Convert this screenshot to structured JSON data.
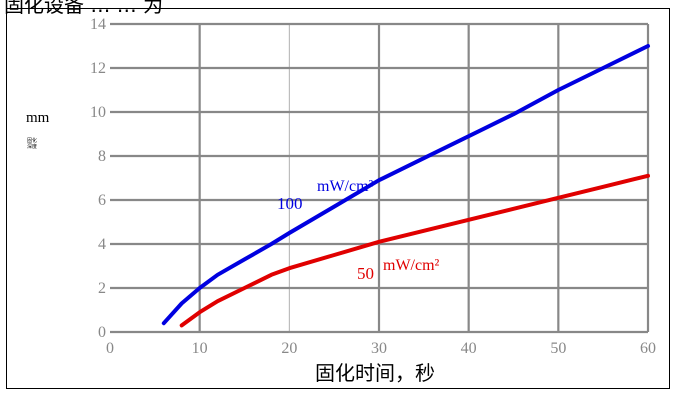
{
  "page": {
    "title_fragment": "固化设备 … … 为"
  },
  "chart_data": {
    "type": "line",
    "xlabel": "固化时间，秒",
    "ylabel": "mm",
    "ylabel_sub": "固化深度",
    "xlim": [
      0,
      60
    ],
    "ylim": [
      0,
      14
    ],
    "xticks": [
      0,
      10,
      20,
      30,
      40,
      50,
      60
    ],
    "yticks": [
      0,
      2,
      4,
      6,
      8,
      10,
      12,
      14
    ],
    "grid": true,
    "series": [
      {
        "name": "100 mW/cm²",
        "color": "#0000e0",
        "x": [
          6,
          8,
          10,
          12,
          15,
          18,
          20,
          25,
          30,
          35,
          40,
          45,
          50,
          55,
          60
        ],
        "y": [
          0.4,
          1.3,
          2.0,
          2.6,
          3.3,
          4.0,
          4.5,
          5.7,
          6.9,
          7.9,
          8.9,
          9.9,
          11.0,
          12.0,
          13.0
        ]
      },
      {
        "name": "50 mW/cm²",
        "color": "#e00000",
        "x": [
          8,
          10,
          12,
          15,
          18,
          20,
          25,
          30,
          35,
          40,
          45,
          50,
          55,
          60
        ],
        "y": [
          0.3,
          0.9,
          1.4,
          2.0,
          2.6,
          2.9,
          3.5,
          4.1,
          4.6,
          5.1,
          5.6,
          6.1,
          6.6,
          7.1
        ]
      }
    ],
    "annotations": [
      {
        "series": 0,
        "label_value": "100",
        "label_unit": "mW/cm²"
      },
      {
        "series": 1,
        "label_value": "50",
        "label_unit": "mW/cm²"
      }
    ]
  }
}
